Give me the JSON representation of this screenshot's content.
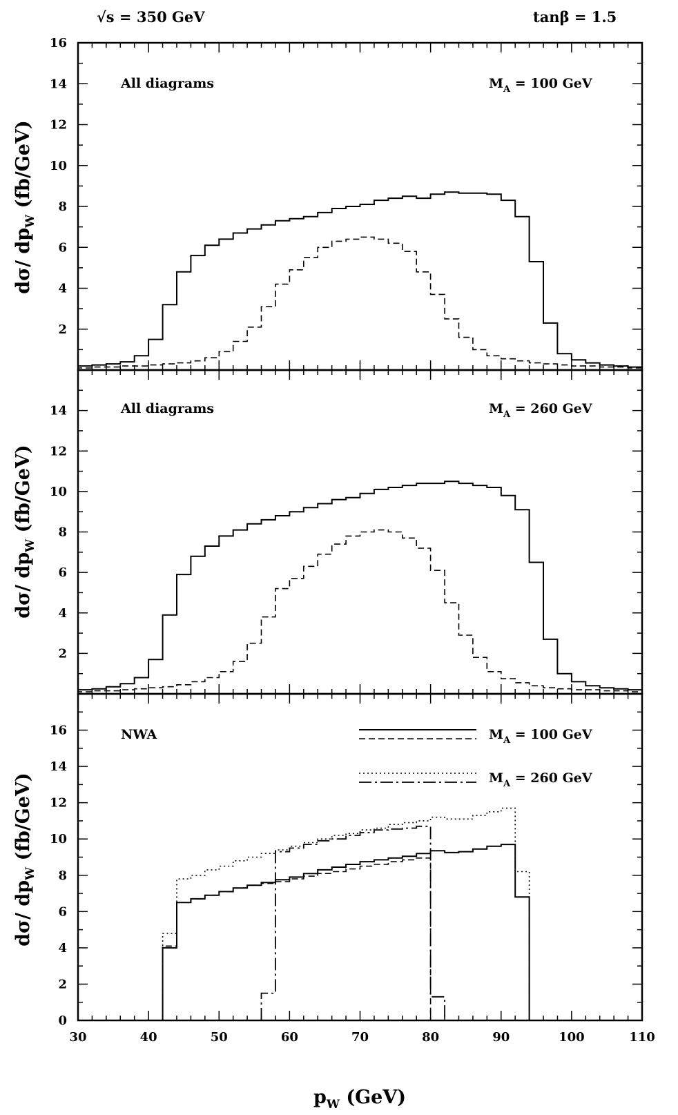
{
  "header": {
    "left": "√s =  350 GeV",
    "right": "tanβ = 1.5"
  },
  "xaxis": {
    "label_main": "p",
    "label_sub": "W",
    "label_unit": " (GeV)",
    "range": [
      30,
      110
    ],
    "ticks": [
      30,
      40,
      50,
      60,
      70,
      80,
      90,
      100,
      110
    ]
  },
  "ylabel": {
    "main": "dσ/ dp",
    "sub": "W",
    "unit": " (fb/GeV)"
  },
  "chart_data": [
    {
      "type": "line",
      "step": true,
      "annotation_left": "All diagrams",
      "annotation_right_main": "M",
      "annotation_right_sub": "A",
      "annotation_right_rest": " = 100 GeV",
      "ylim": [
        0,
        16
      ],
      "yticks": [
        2,
        4,
        6,
        8,
        10,
        12,
        14,
        16
      ],
      "bin_edges": [
        30,
        32,
        34,
        36,
        38,
        40,
        42,
        44,
        46,
        48,
        50,
        52,
        54,
        56,
        58,
        60,
        62,
        64,
        66,
        68,
        70,
        72,
        74,
        76,
        78,
        80,
        82,
        84,
        86,
        88,
        90,
        92,
        94,
        96,
        98,
        100,
        102,
        104,
        106,
        108,
        110
      ],
      "series": [
        {
          "style": "solid",
          "values": [
            0.2,
            0.25,
            0.3,
            0.4,
            0.7,
            1.5,
            3.2,
            4.8,
            5.6,
            6.1,
            6.4,
            6.7,
            6.9,
            7.1,
            7.3,
            7.4,
            7.5,
            7.7,
            7.9,
            8.0,
            8.1,
            8.3,
            8.4,
            8.5,
            8.4,
            8.6,
            8.7,
            8.65,
            8.65,
            8.6,
            8.3,
            7.5,
            5.3,
            2.3,
            0.8,
            0.5,
            0.35,
            0.25,
            0.2,
            0.15
          ]
        },
        {
          "style": "dashed",
          "values": [
            0.1,
            0.15,
            0.15,
            0.2,
            0.2,
            0.25,
            0.3,
            0.35,
            0.45,
            0.6,
            0.9,
            1.4,
            2.1,
            3.1,
            4.2,
            4.9,
            5.5,
            6.0,
            6.3,
            6.4,
            6.5,
            6.4,
            6.2,
            5.8,
            4.8,
            3.7,
            2.5,
            1.6,
            1.0,
            0.7,
            0.55,
            0.45,
            0.35,
            0.3,
            0.25,
            0.2,
            0.2,
            0.15,
            0.15,
            0.1
          ]
        }
      ]
    },
    {
      "type": "line",
      "step": true,
      "annotation_left": "All diagrams",
      "annotation_right_main": "M",
      "annotation_right_sub": "A",
      "annotation_right_rest": " = 260 GeV",
      "ylim": [
        0,
        16
      ],
      "yticks": [
        2,
        4,
        6,
        8,
        10,
        12,
        14
      ],
      "bin_edges": [
        30,
        32,
        34,
        36,
        38,
        40,
        42,
        44,
        46,
        48,
        50,
        52,
        54,
        56,
        58,
        60,
        62,
        64,
        66,
        68,
        70,
        72,
        74,
        76,
        78,
        80,
        82,
        84,
        86,
        88,
        90,
        92,
        94,
        96,
        98,
        100,
        102,
        104,
        106,
        108,
        110
      ],
      "series": [
        {
          "style": "solid",
          "values": [
            0.2,
            0.25,
            0.35,
            0.5,
            0.8,
            1.7,
            3.9,
            5.9,
            6.8,
            7.3,
            7.8,
            8.1,
            8.4,
            8.6,
            8.8,
            9.0,
            9.2,
            9.4,
            9.6,
            9.7,
            9.9,
            10.1,
            10.2,
            10.3,
            10.4,
            10.4,
            10.5,
            10.4,
            10.3,
            10.2,
            9.8,
            9.1,
            6.5,
            2.7,
            1.0,
            0.6,
            0.4,
            0.3,
            0.25,
            0.2
          ]
        },
        {
          "style": "dashed",
          "values": [
            0.1,
            0.15,
            0.15,
            0.2,
            0.25,
            0.3,
            0.35,
            0.45,
            0.6,
            0.8,
            1.1,
            1.6,
            2.5,
            3.8,
            5.2,
            5.7,
            6.3,
            6.9,
            7.4,
            7.8,
            8.0,
            8.1,
            8.0,
            7.7,
            7.2,
            6.1,
            4.5,
            2.9,
            1.8,
            1.1,
            0.75,
            0.55,
            0.4,
            0.3,
            0.25,
            0.2,
            0.2,
            0.15,
            0.15,
            0.1
          ]
        }
      ]
    },
    {
      "type": "line",
      "step": true,
      "annotation_left": "NWA",
      "ylim": [
        0,
        18
      ],
      "yticks": [
        0,
        2,
        4,
        6,
        8,
        10,
        12,
        14,
        16
      ],
      "legend": [
        {
          "name_main": "M",
          "name_sub": "A",
          "name_rest": " = 100 GeV",
          "styles": [
            "solid",
            "dashed"
          ]
        },
        {
          "name_main": "M",
          "name_sub": "A",
          "name_rest": " = 260 GeV",
          "styles": [
            "dotted",
            "dashdot"
          ]
        }
      ],
      "series": [
        {
          "style": "solid",
          "bin_edges": [
            42,
            44,
            46,
            48,
            50,
            52,
            54,
            56,
            58,
            60,
            62,
            64,
            66,
            68,
            70,
            72,
            74,
            76,
            78,
            80,
            82,
            84,
            86,
            88,
            90,
            92,
            94
          ],
          "values": [
            4.0,
            6.5,
            6.7,
            6.9,
            7.1,
            7.3,
            7.45,
            7.6,
            7.75,
            7.9,
            8.1,
            8.3,
            8.45,
            8.6,
            8.75,
            8.85,
            8.95,
            9.05,
            9.2,
            9.35,
            9.25,
            9.3,
            9.45,
            9.6,
            9.7,
            6.8
          ]
        },
        {
          "style": "dashed",
          "bin_edges": [
            42,
            44,
            46,
            48,
            50,
            52,
            54,
            56,
            58,
            60,
            62,
            64,
            66,
            68,
            70,
            72,
            74,
            76,
            78,
            80
          ],
          "values": [
            4.1,
            6.5,
            6.7,
            6.9,
            7.1,
            7.3,
            7.45,
            7.55,
            7.65,
            7.8,
            7.95,
            8.1,
            8.2,
            8.35,
            8.5,
            8.6,
            8.75,
            8.85,
            8.95
          ]
        },
        {
          "style": "dotted",
          "bin_edges": [
            42,
            44,
            46,
            48,
            50,
            52,
            54,
            56,
            58,
            60,
            62,
            64,
            66,
            68,
            70,
            72,
            74,
            76,
            78,
            80,
            82,
            84,
            86,
            88,
            90,
            92,
            94
          ],
          "values": [
            4.8,
            7.8,
            8.0,
            8.3,
            8.5,
            8.8,
            9.0,
            9.2,
            9.4,
            9.6,
            9.8,
            10.0,
            10.2,
            10.3,
            10.5,
            10.6,
            10.8,
            10.9,
            11.0,
            11.2,
            11.1,
            11.1,
            11.3,
            11.5,
            11.7,
            8.2
          ]
        },
        {
          "style": "dashdot",
          "bin_edges": [
            56,
            58,
            60,
            62,
            64,
            66,
            68,
            70,
            72,
            74,
            76,
            78,
            80,
            82
          ],
          "values": [
            1.5,
            9.3,
            9.5,
            9.7,
            9.9,
            10.0,
            10.2,
            10.35,
            10.5,
            10.55,
            10.6,
            10.7,
            1.3
          ]
        }
      ]
    }
  ]
}
